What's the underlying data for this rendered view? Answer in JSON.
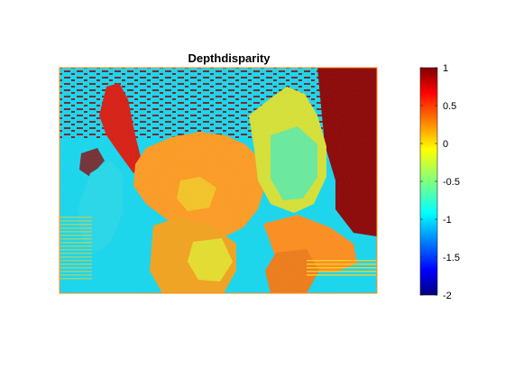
{
  "figure": {
    "title": "Depthdisparity"
  },
  "colorbar": {
    "colormap": "jet",
    "range": [
      -2,
      1
    ],
    "ticks": [
      {
        "value": 1,
        "label": "1"
      },
      {
        "value": 0.5,
        "label": "0.5"
      },
      {
        "value": 0,
        "label": "0"
      },
      {
        "value": -0.5,
        "label": "-0.5"
      },
      {
        "value": -1,
        "label": "-1"
      },
      {
        "value": -1.5,
        "label": "-1.5"
      },
      {
        "value": -2,
        "label": "-2"
      }
    ]
  },
  "colors": {
    "background_cyan": "#12d8f0",
    "disparity_max_red": "#8a0000",
    "orange_region": "#ff9a1e",
    "yellow_region": "#e6df2a",
    "green_region": "#7cf2a0"
  }
}
